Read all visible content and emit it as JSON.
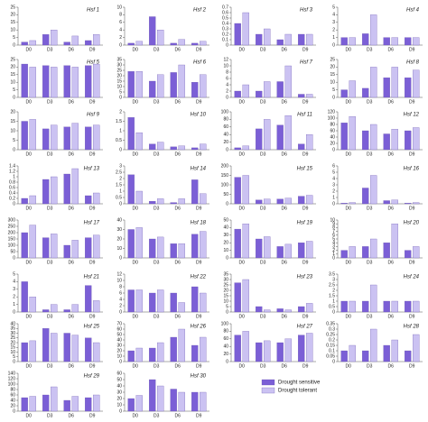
{
  "chart_data": [
    {
      "type": "bar",
      "title": "Hsf 1",
      "categories": [
        "D0",
        "D3",
        "D6",
        "D9"
      ],
      "series": [
        {
          "values": [
            2,
            7,
            2,
            3
          ]
        },
        {
          "values": [
            3,
            10,
            6,
            7
          ]
        }
      ],
      "ylim": [
        0,
        25
      ],
      "yticks": [
        0,
        5,
        10,
        15,
        20,
        25
      ]
    },
    {
      "type": "bar",
      "title": "Hsf 2",
      "categories": [
        "D0",
        "D3",
        "D6",
        "D9"
      ],
      "series": [
        {
          "values": [
            0.5,
            7.5,
            0.5,
            0.5
          ]
        },
        {
          "values": [
            1,
            4,
            1.5,
            1
          ]
        }
      ],
      "ylim": [
        0,
        10
      ],
      "yticks": [
        0,
        2,
        4,
        6,
        8,
        10
      ]
    },
    {
      "type": "bar",
      "title": "Hsf 3",
      "categories": [
        "D0",
        "D3",
        "D6",
        "D9"
      ],
      "series": [
        {
          "values": [
            0.4,
            0.2,
            0.1,
            0.2
          ]
        },
        {
          "values": [
            0.6,
            0.3,
            0.2,
            0.2
          ]
        }
      ],
      "ylim": [
        0,
        0.7
      ],
      "yticks": [
        0,
        0.1,
        0.2,
        0.3,
        0.4,
        0.5,
        0.6,
        0.7
      ]
    },
    {
      "type": "bar",
      "title": "Hsf 4",
      "categories": [
        "D0",
        "D3",
        "D6",
        "D9"
      ],
      "series": [
        {
          "values": [
            1,
            1.5,
            1,
            1
          ]
        },
        {
          "values": [
            1,
            4,
            1,
            1
          ]
        }
      ],
      "ylim": [
        0,
        5
      ],
      "yticks": [
        0,
        1,
        2,
        3,
        4,
        5
      ]
    },
    {
      "type": "bar",
      "title": "Hsf 5",
      "categories": [
        "D0",
        "D3",
        "D6",
        "D9"
      ],
      "series": [
        {
          "values": [
            22,
            21,
            21,
            21
          ]
        },
        {
          "values": [
            20,
            20,
            20,
            22
          ]
        }
      ],
      "ylim": [
        0,
        25
      ],
      "yticks": [
        0,
        5,
        10,
        15,
        20,
        25
      ]
    },
    {
      "type": "bar",
      "title": "Hsf 6",
      "categories": [
        "D0",
        "D3",
        "D6",
        "D9"
      ],
      "series": [
        {
          "values": [
            24,
            15,
            23,
            14
          ]
        },
        {
          "values": [
            24,
            21,
            30,
            21
          ]
        }
      ],
      "ylim": [
        0,
        35
      ],
      "yticks": [
        0,
        5,
        10,
        15,
        20,
        25,
        30,
        35
      ]
    },
    {
      "type": "bar",
      "title": "Hsf 7",
      "categories": [
        "D0",
        "D3",
        "D6",
        "D9"
      ],
      "series": [
        {
          "values": [
            2,
            2,
            5,
            1
          ]
        },
        {
          "values": [
            4,
            5,
            10,
            1
          ]
        }
      ],
      "ylim": [
        0,
        12
      ],
      "yticks": [
        0,
        2,
        4,
        6,
        8,
        10,
        12
      ]
    },
    {
      "type": "bar",
      "title": "Hsf 8",
      "categories": [
        "D0",
        "D3",
        "D6",
        "D9"
      ],
      "series": [
        {
          "values": [
            5,
            6,
            13,
            13
          ]
        },
        {
          "values": [
            11,
            20,
            20,
            18
          ]
        }
      ],
      "ylim": [
        0,
        25
      ],
      "yticks": [
        0,
        5,
        10,
        15,
        20,
        25
      ]
    },
    {
      "type": "bar",
      "title": "Hsf 9",
      "categories": [
        "D0",
        "D3",
        "D6",
        "D9"
      ],
      "series": [
        {
          "values": [
            15,
            11,
            12,
            12
          ]
        },
        {
          "values": [
            16,
            13,
            14,
            13
          ]
        }
      ],
      "ylim": [
        0,
        20
      ],
      "yticks": [
        0,
        5,
        10,
        15,
        20
      ]
    },
    {
      "type": "bar",
      "title": "Hsf 10",
      "categories": [
        "D0",
        "D3",
        "D6",
        "D9"
      ],
      "series": [
        {
          "values": [
            1.7,
            0.3,
            0.15,
            0.1
          ]
        },
        {
          "values": [
            0.9,
            0.4,
            0.2,
            0.3
          ]
        }
      ],
      "ylim": [
        0,
        2
      ],
      "yticks": [
        0,
        0.5,
        1,
        1.5,
        2
      ]
    },
    {
      "type": "bar",
      "title": "Hsf 11",
      "categories": [
        "D0",
        "D3",
        "D6",
        "D9"
      ],
      "series": [
        {
          "values": [
            5,
            55,
            65,
            15
          ]
        },
        {
          "values": [
            10,
            80,
            90,
            40
          ]
        }
      ],
      "ylim": [
        0,
        100
      ],
      "yticks": [
        0,
        20,
        40,
        60,
        80,
        100
      ]
    },
    {
      "type": "bar",
      "title": "Hsf 12",
      "categories": [
        "D0",
        "D3",
        "D6",
        "D9"
      ],
      "series": [
        {
          "values": [
            85,
            60,
            50,
            60
          ]
        },
        {
          "values": [
            105,
            80,
            65,
            70
          ]
        }
      ],
      "ylim": [
        0,
        120
      ],
      "yticks": [
        0,
        20,
        40,
        60,
        80,
        100,
        120
      ]
    },
    {
      "type": "bar",
      "title": "Hsf 13",
      "categories": [
        "D0",
        "D3",
        "D6",
        "D9"
      ],
      "series": [
        {
          "values": [
            0.2,
            0.9,
            1.1,
            0.3
          ]
        },
        {
          "values": [
            0.3,
            1,
            1.3,
            0.4
          ]
        }
      ],
      "ylim": [
        0,
        1.4
      ],
      "yticks": [
        0,
        0.2,
        0.4,
        0.6,
        0.8,
        1,
        1.2,
        1.4
      ]
    },
    {
      "type": "bar",
      "title": "Hsf 14",
      "categories": [
        "D0",
        "D3",
        "D6",
        "D9"
      ],
      "series": [
        {
          "values": [
            2.3,
            0.2,
            0.1,
            1.9
          ]
        },
        {
          "values": [
            1,
            0.4,
            0.4,
            0.8
          ]
        }
      ],
      "ylim": [
        0,
        3
      ],
      "yticks": [
        0,
        0.5,
        1,
        1.5,
        2,
        2.5,
        3
      ]
    },
    {
      "type": "bar",
      "title": "Hsf 15",
      "categories": [
        "D0",
        "D3",
        "D6",
        "D9"
      ],
      "series": [
        {
          "values": [
            140,
            20,
            25,
            40
          ]
        },
        {
          "values": [
            150,
            25,
            30,
            45
          ]
        }
      ],
      "ylim": [
        0,
        200
      ],
      "yticks": [
        0,
        50,
        100,
        150,
        200
      ]
    },
    {
      "type": "bar",
      "title": "Hsf 16",
      "categories": [
        "D0",
        "D3",
        "D6",
        "D9"
      ],
      "series": [
        {
          "values": [
            0.1,
            2.5,
            0.5,
            0.1
          ]
        },
        {
          "values": [
            0.2,
            4.5,
            0.6,
            0.2
          ]
        }
      ],
      "ylim": [
        0,
        6
      ],
      "yticks": [
        0,
        1,
        2,
        3,
        4,
        5,
        6
      ]
    },
    {
      "type": "bar",
      "title": "Hsf 17",
      "categories": [
        "D0",
        "D3",
        "D6",
        "D9"
      ],
      "series": [
        {
          "values": [
            200,
            160,
            100,
            160
          ]
        },
        {
          "values": [
            260,
            190,
            140,
            180
          ]
        }
      ],
      "ylim": [
        0,
        300
      ],
      "yticks": [
        0,
        50,
        100,
        150,
        200,
        250,
        300
      ]
    },
    {
      "type": "bar",
      "title": "Hsf 18",
      "categories": [
        "D0",
        "D3",
        "D6",
        "D9"
      ],
      "series": [
        {
          "values": [
            30,
            20,
            15,
            25
          ]
        },
        {
          "values": [
            32,
            22,
            15,
            28
          ]
        }
      ],
      "ylim": [
        0,
        40
      ],
      "yticks": [
        0,
        10,
        20,
        30,
        40
      ]
    },
    {
      "type": "bar",
      "title": "Hsf 19",
      "categories": [
        "D0",
        "D3",
        "D6",
        "D9"
      ],
      "series": [
        {
          "values": [
            38,
            25,
            15,
            20
          ]
        },
        {
          "values": [
            45,
            28,
            18,
            22
          ]
        }
      ],
      "ylim": [
        0,
        50
      ],
      "yticks": [
        0,
        10,
        20,
        30,
        40,
        50
      ]
    },
    {
      "type": "bar",
      "title": "Hsf 20",
      "categories": [
        "D0",
        "D3",
        "D6",
        "D9"
      ],
      "series": [
        {
          "values": [
            2,
            3,
            4,
            2
          ]
        },
        {
          "values": [
            3,
            5,
            9,
            3
          ]
        }
      ],
      "ylim": [
        0,
        10
      ],
      "yticks": [
        0,
        1,
        2,
        3,
        4,
        5,
        6,
        7,
        8,
        9,
        10
      ]
    },
    {
      "type": "bar",
      "title": "Hsf 21",
      "categories": [
        "D0",
        "D3",
        "D6",
        "D9"
      ],
      "series": [
        {
          "values": [
            4,
            0.3,
            0.3,
            3.5
          ]
        },
        {
          "values": [
            2,
            1,
            1,
            1.5
          ]
        }
      ],
      "ylim": [
        0,
        5
      ],
      "yticks": [
        0,
        1,
        2,
        3,
        4,
        5
      ]
    },
    {
      "type": "bar",
      "title": "Hsf 22",
      "categories": [
        "D0",
        "D3",
        "D6",
        "D9"
      ],
      "series": [
        {
          "values": [
            7,
            6,
            6,
            8
          ]
        },
        {
          "values": [
            7,
            7,
            3,
            6
          ]
        }
      ],
      "ylim": [
        0,
        12
      ],
      "yticks": [
        0,
        2,
        4,
        6,
        8,
        10,
        12
      ]
    },
    {
      "type": "bar",
      "title": "Hsf 23",
      "categories": [
        "D0",
        "D3",
        "D6",
        "D9"
      ],
      "series": [
        {
          "values": [
            27,
            5,
            3,
            5
          ]
        },
        {
          "values": [
            30,
            2,
            2,
            8
          ]
        }
      ],
      "ylim": [
        0,
        35
      ],
      "yticks": [
        0,
        5,
        10,
        15,
        20,
        25,
        30,
        35
      ]
    },
    {
      "type": "bar",
      "title": "Hsf 24",
      "categories": [
        "D0",
        "D3",
        "D6",
        "D9"
      ],
      "series": [
        {
          "values": [
            1,
            1,
            1,
            1
          ]
        },
        {
          "values": [
            1,
            2.5,
            1,
            1
          ]
        }
      ],
      "ylim": [
        0,
        3.5
      ],
      "yticks": [
        0,
        0.5,
        1,
        1.5,
        2,
        2.5,
        3,
        3.5
      ]
    },
    {
      "type": "bar",
      "title": "Hsf 25",
      "categories": [
        "D0",
        "D3",
        "D6",
        "D9"
      ],
      "series": [
        {
          "values": [
            20,
            35,
            30,
            25
          ]
        },
        {
          "values": [
            22,
            30,
            28,
            20
          ]
        }
      ],
      "ylim": [
        0,
        40
      ],
      "yticks": [
        0,
        5,
        10,
        15,
        20,
        25,
        30,
        35,
        40
      ]
    },
    {
      "type": "bar",
      "title": "Hsf 26",
      "categories": [
        "D0",
        "D3",
        "D6",
        "D9"
      ],
      "series": [
        {
          "values": [
            20,
            25,
            45,
            30
          ]
        },
        {
          "values": [
            25,
            35,
            60,
            45
          ]
        }
      ],
      "ylim": [
        0,
        70
      ],
      "yticks": [
        0,
        10,
        20,
        30,
        40,
        50,
        60,
        70
      ]
    },
    {
      "type": "bar",
      "title": "Hsf 27",
      "categories": [
        "D0",
        "D3",
        "D6",
        "D9"
      ],
      "series": [
        {
          "values": [
            70,
            50,
            50,
            70
          ]
        },
        {
          "values": [
            80,
            55,
            60,
            75
          ]
        }
      ],
      "ylim": [
        0,
        100
      ],
      "yticks": [
        0,
        20,
        40,
        60,
        80,
        100
      ]
    },
    {
      "type": "bar",
      "title": "Hsf 28",
      "categories": [
        "D0",
        "D3",
        "D6",
        "D9"
      ],
      "series": [
        {
          "values": [
            0.1,
            0.1,
            0.15,
            0.1
          ]
        },
        {
          "values": [
            0.15,
            0.3,
            0.2,
            0.25
          ]
        }
      ],
      "ylim": [
        0,
        0.35
      ],
      "yticks": [
        0,
        0.05,
        0.1,
        0.15,
        0.2,
        0.25,
        0.3,
        0.35
      ]
    },
    {
      "type": "bar",
      "title": "Hsf 29",
      "categories": [
        "D0",
        "D3",
        "D6",
        "D9"
      ],
      "series": [
        {
          "values": [
            50,
            60,
            40,
            50
          ]
        },
        {
          "values": [
            55,
            90,
            55,
            60
          ]
        }
      ],
      "ylim": [
        0,
        140
      ],
      "yticks": [
        0,
        20,
        40,
        60,
        80,
        100,
        120,
        140
      ]
    },
    {
      "type": "bar",
      "title": "Hsf 30",
      "categories": [
        "D0",
        "D3",
        "D6",
        "D9"
      ],
      "series": [
        {
          "values": [
            20,
            50,
            35,
            30
          ]
        },
        {
          "values": [
            25,
            40,
            30,
            30
          ]
        }
      ],
      "ylim": [
        0,
        60
      ],
      "yticks": [
        0,
        10,
        20,
        30,
        40,
        50,
        60
      ]
    }
  ],
  "legend": {
    "names": [
      "Drought sensitive",
      "Drought tolerant"
    ],
    "colors": [
      "#7b5fd6",
      "#cbc2f2"
    ]
  }
}
